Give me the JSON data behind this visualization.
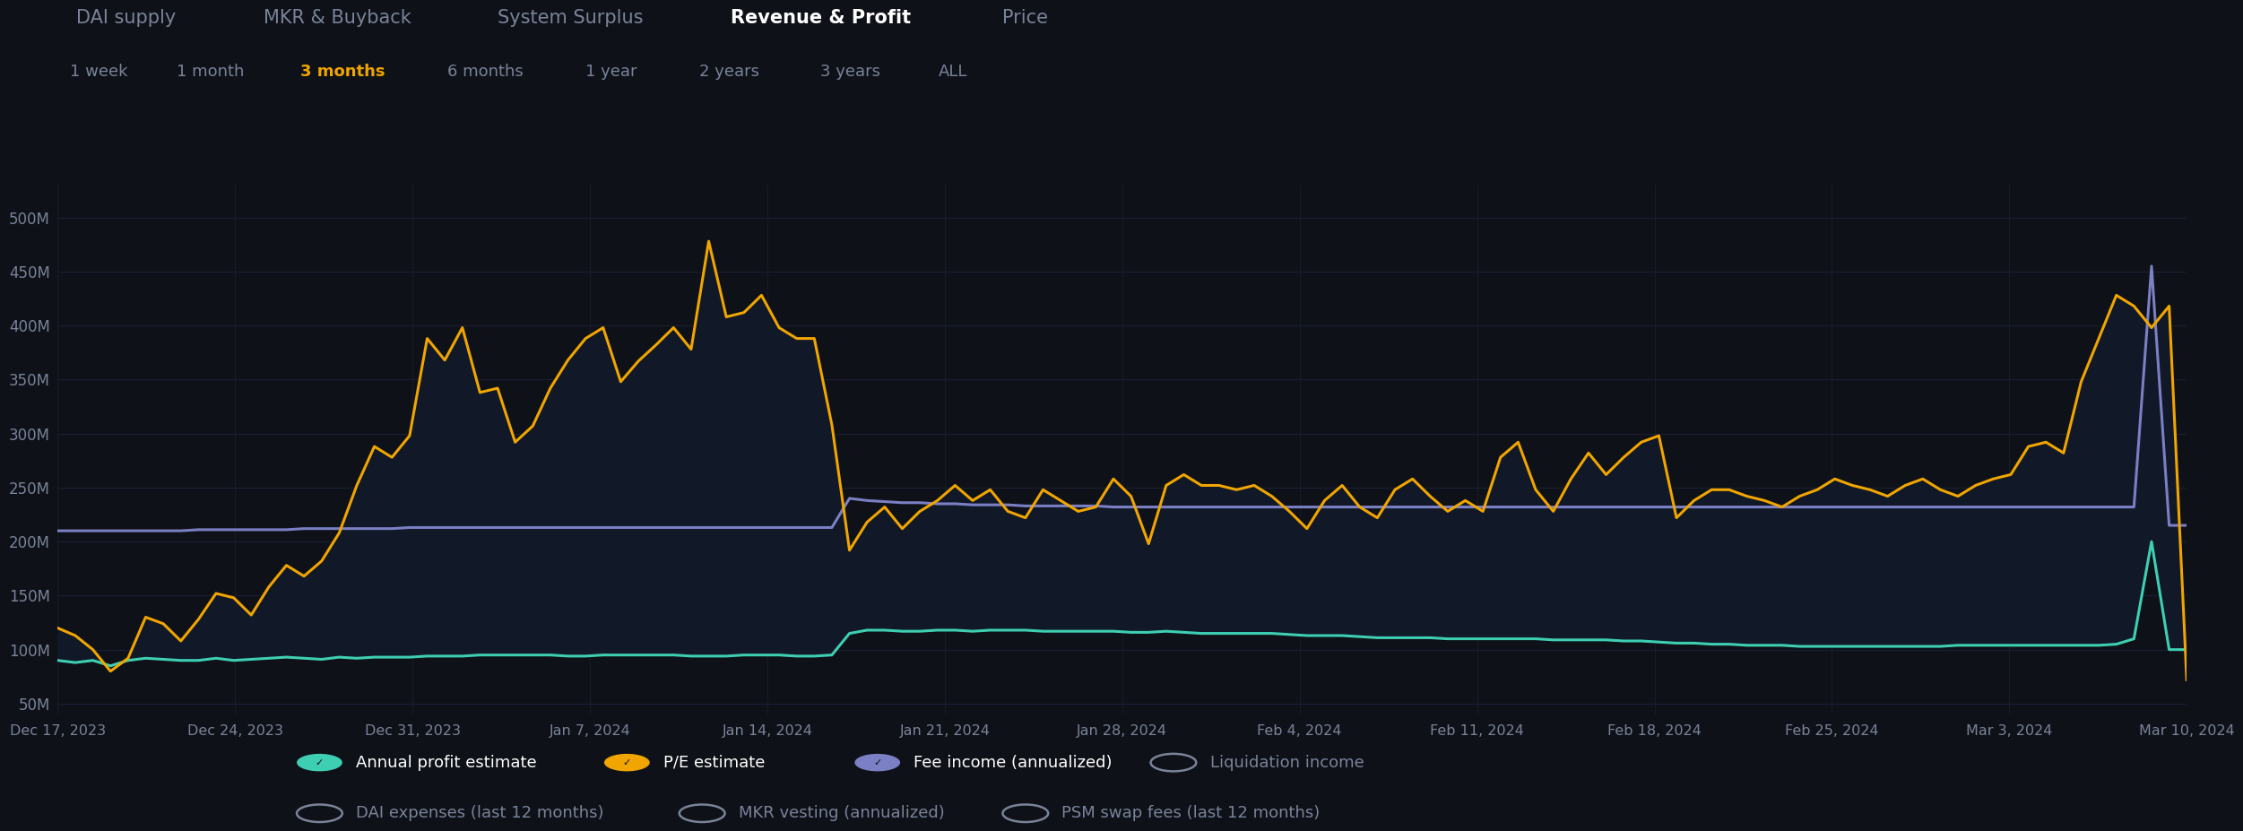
{
  "background_color": "#0e1117",
  "fill_color": "#111827",
  "orange_color": "#f0a500",
  "teal_color": "#3ecfb2",
  "purple_color": "#7b7fc4",
  "text_color_white": "#ffffff",
  "text_color_light": "#cccccc",
  "text_color_dim": "#7a8399",
  "grid_color": "#1a2035",
  "title_tabs": [
    "DAI supply",
    "MKR & Buyback",
    "System Surplus",
    "Revenue & Profit",
    "Price"
  ],
  "title_active": "Revenue & Profit",
  "time_tabs": [
    "1 week",
    "1 month",
    "3 months",
    "6 months",
    "1 year",
    "2 years",
    "3 years",
    "ALL"
  ],
  "time_active": "3 months",
  "ytick_vals": [
    50,
    100,
    150,
    200,
    250,
    300,
    350,
    400,
    450,
    500
  ],
  "ylim": [
    40,
    530
  ],
  "xtick_labels": [
    "Dec 17, 2023",
    "Dec 24, 2023",
    "Dec 31, 2023",
    "Jan 7, 2024",
    "Jan 14, 2024",
    "Jan 21, 2024",
    "Jan 28, 2024",
    "Feb 4, 2024",
    "Feb 11, 2024",
    "Feb 18, 2024",
    "Feb 25, 2024",
    "Mar 3, 2024",
    "Mar 10, 2024"
  ],
  "legend_row1": [
    {
      "label": "Annual profit estimate",
      "color": "#3ecfb2",
      "filled": true
    },
    {
      "label": "P/E estimate",
      "color": "#f0a500",
      "filled": true
    },
    {
      "label": "Fee income (annualized)",
      "color": "#7b7fc4",
      "filled": true
    },
    {
      "label": "Liquidation income",
      "color": "#7a8399",
      "filled": false
    }
  ],
  "legend_row2": [
    {
      "label": "DAI expenses (last 12 months)",
      "color": "#7a8399",
      "filled": false
    },
    {
      "label": "MKR vesting (annualized)",
      "color": "#7a8399",
      "filled": false
    },
    {
      "label": "PSM swap fees (last 12 months)",
      "color": "#7a8399",
      "filled": false
    }
  ],
  "orange_data": [
    120,
    113,
    100,
    80,
    92,
    130,
    124,
    108,
    128,
    152,
    148,
    132,
    158,
    178,
    168,
    182,
    208,
    252,
    288,
    278,
    298,
    388,
    368,
    398,
    338,
    342,
    292,
    307,
    342,
    368,
    388,
    398,
    348,
    367,
    382,
    398,
    378,
    478,
    408,
    412,
    428,
    398,
    388,
    388,
    308,
    192,
    218,
    232,
    212,
    228,
    238,
    252,
    238,
    248,
    228,
    222,
    248,
    238,
    228,
    232,
    258,
    242,
    198,
    252,
    262,
    252,
    252,
    248,
    252,
    242,
    228,
    212,
    238,
    252,
    232,
    222,
    248,
    258,
    242,
    228,
    238,
    228,
    278,
    292,
    248,
    228,
    258,
    282,
    262,
    278,
    292,
    298,
    222,
    238,
    248,
    248,
    242,
    238,
    232,
    242,
    248,
    258,
    252,
    248,
    242,
    252,
    258,
    248,
    242,
    252,
    258,
    262,
    288,
    292,
    282,
    348,
    388,
    428,
    418,
    398,
    418,
    72
  ],
  "teal_data": [
    90,
    88,
    90,
    85,
    90,
    92,
    91,
    90,
    90,
    92,
    90,
    91,
    92,
    93,
    92,
    91,
    93,
    92,
    93,
    93,
    93,
    94,
    94,
    94,
    95,
    95,
    95,
    95,
    95,
    94,
    94,
    95,
    95,
    95,
    95,
    95,
    94,
    94,
    94,
    95,
    95,
    95,
    94,
    94,
    95,
    115,
    118,
    118,
    117,
    117,
    118,
    118,
    117,
    118,
    118,
    118,
    117,
    117,
    117,
    117,
    117,
    116,
    116,
    117,
    116,
    115,
    115,
    115,
    115,
    115,
    114,
    113,
    113,
    113,
    112,
    111,
    111,
    111,
    111,
    110,
    110,
    110,
    110,
    110,
    110,
    109,
    109,
    109,
    109,
    108,
    108,
    107,
    106,
    106,
    105,
    105,
    104,
    104,
    104,
    103,
    103,
    103,
    103,
    103,
    103,
    103,
    103,
    103,
    104,
    104,
    104,
    104,
    104,
    104,
    104,
    104,
    104,
    105,
    110,
    200,
    100,
    100
  ],
  "purple_data": [
    210,
    210,
    210,
    210,
    210,
    210,
    210,
    210,
    211,
    211,
    211,
    211,
    211,
    211,
    212,
    212,
    212,
    212,
    212,
    212,
    213,
    213,
    213,
    213,
    213,
    213,
    213,
    213,
    213,
    213,
    213,
    213,
    213,
    213,
    213,
    213,
    213,
    213,
    213,
    213,
    213,
    213,
    213,
    213,
    213,
    240,
    238,
    237,
    236,
    236,
    235,
    235,
    234,
    234,
    234,
    233,
    233,
    233,
    233,
    233,
    232,
    232,
    232,
    232,
    232,
    232,
    232,
    232,
    232,
    232,
    232,
    232,
    232,
    232,
    232,
    232,
    232,
    232,
    232,
    232,
    232,
    232,
    232,
    232,
    232,
    232,
    232,
    232,
    232,
    232,
    232,
    232,
    232,
    232,
    232,
    232,
    232,
    232,
    232,
    232,
    232,
    232,
    232,
    232,
    232,
    232,
    232,
    232,
    232,
    232,
    232,
    232,
    232,
    232,
    232,
    232,
    232,
    232,
    232,
    455,
    215,
    215
  ]
}
